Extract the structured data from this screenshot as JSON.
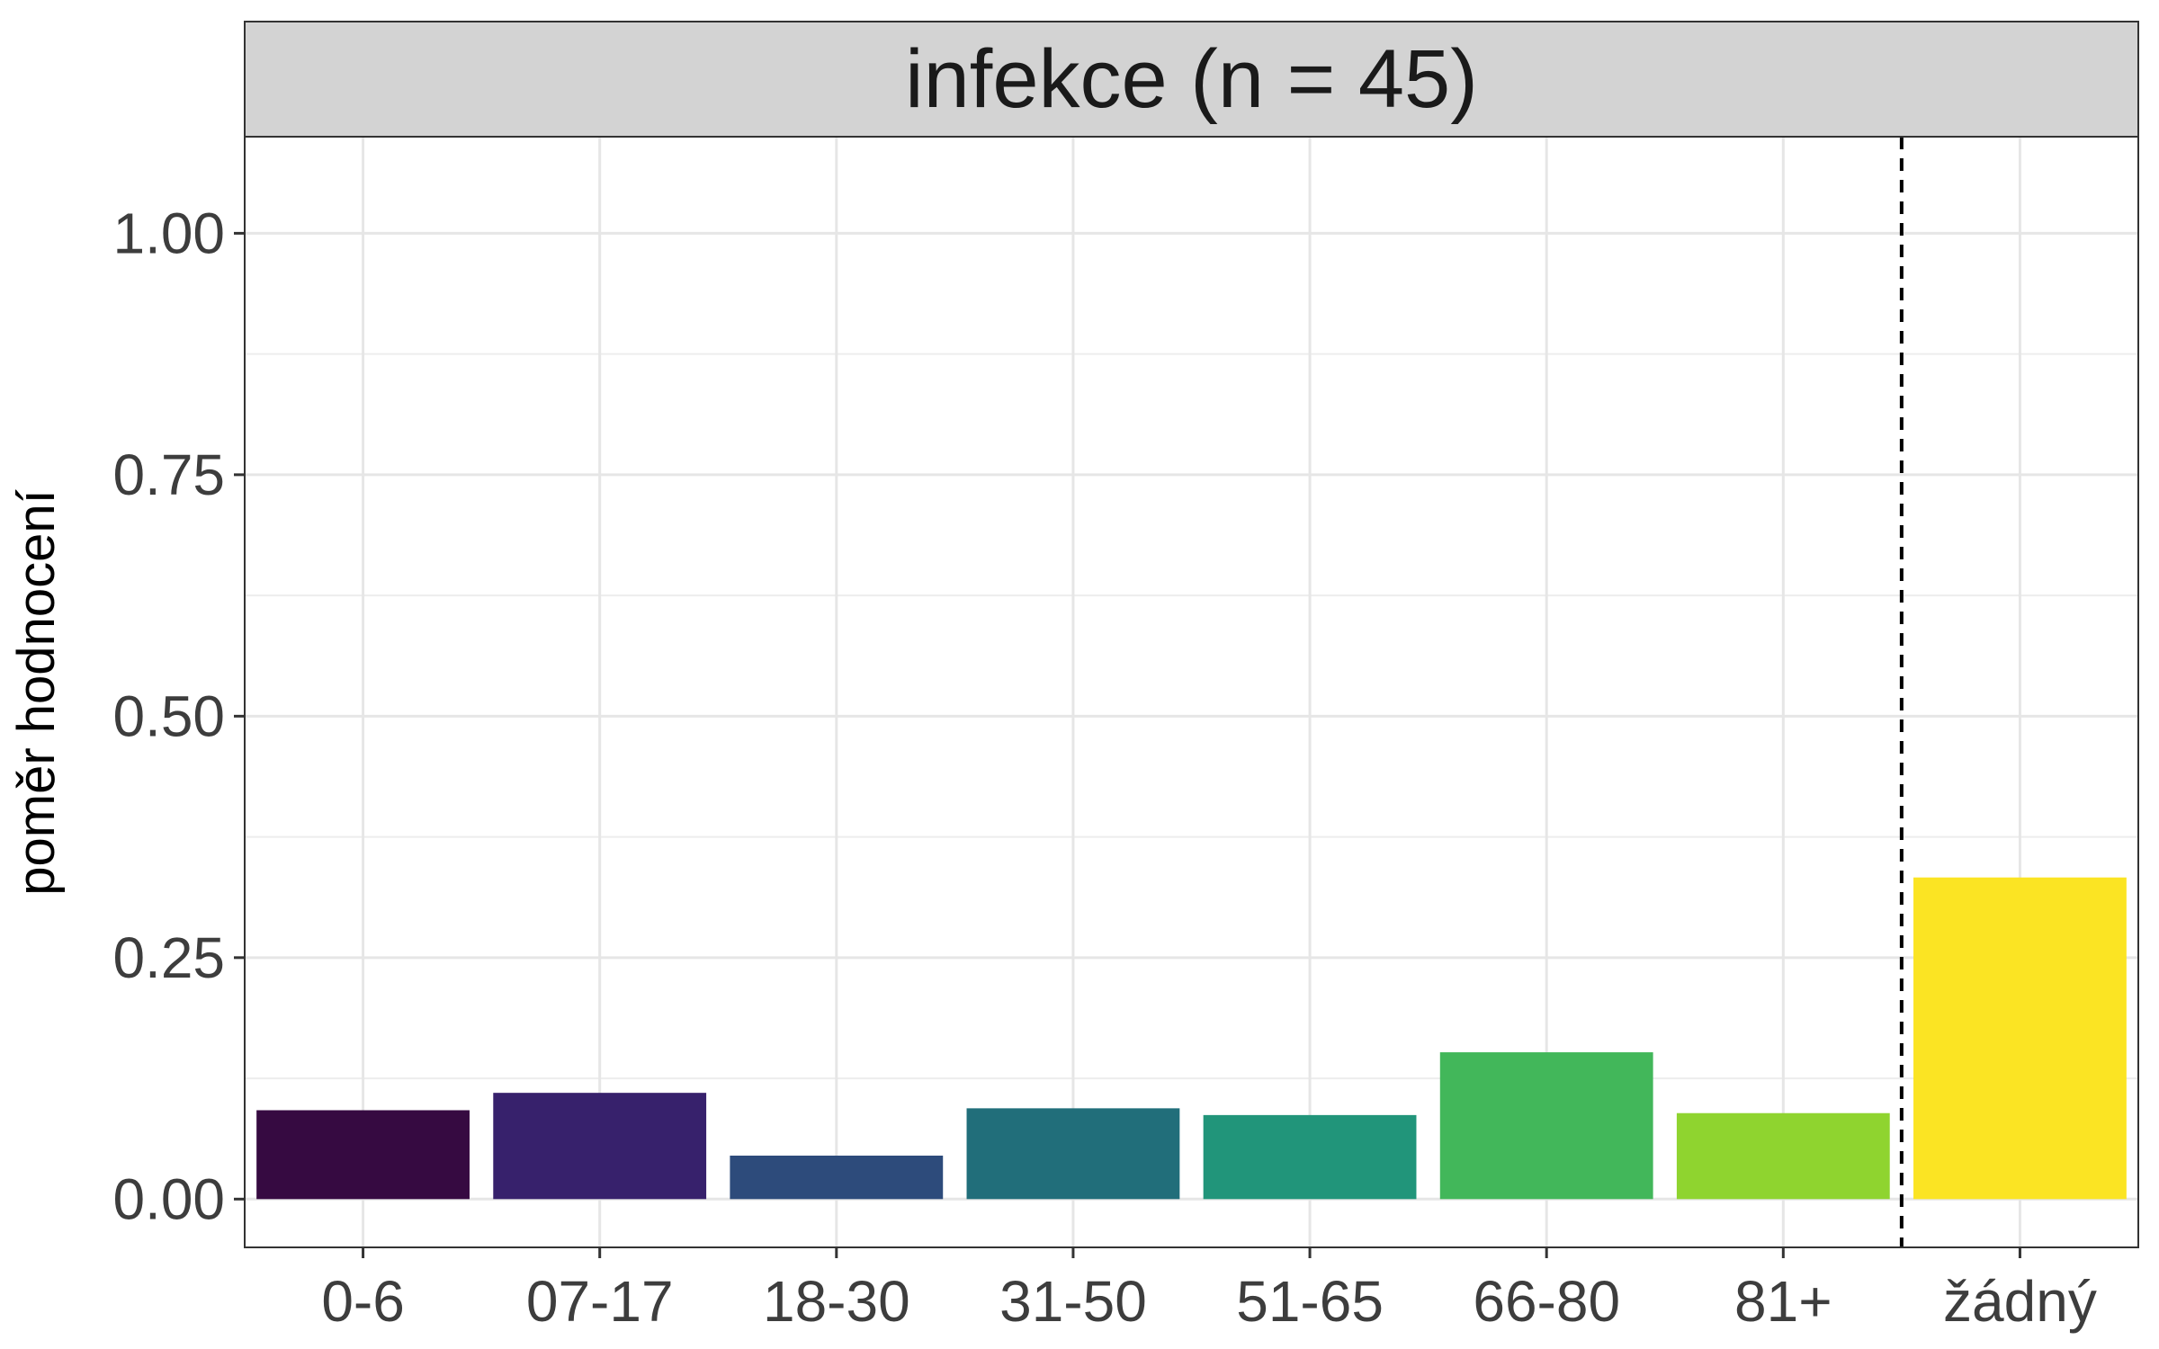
{
  "chart_data": {
    "type": "bar",
    "title": "infekce (n = 45)",
    "xlabel": "",
    "ylabel": "poměr hodnocení",
    "categories": [
      "0-6",
      "07-17",
      "18-30",
      "31-50",
      "51-65",
      "66-80",
      "81+",
      "žádný"
    ],
    "values": [
      0.092,
      0.11,
      0.045,
      0.094,
      0.087,
      0.152,
      0.089,
      0.333
    ],
    "colors": [
      "#360a41",
      "#37216c",
      "#2d4b7b",
      "#216e7a",
      "#21957a",
      "#42b75a",
      "#8fd42f",
      "#fbe423"
    ],
    "ylim": [
      -0.05,
      1.1
    ],
    "yticks": [
      "0.00",
      "0.25",
      "0.50",
      "0.75",
      "1.00"
    ],
    "ytick_values": [
      0,
      0.25,
      0.5,
      0.75,
      1.0
    ],
    "reference_line": {
      "between": [
        "81+",
        "žádný"
      ],
      "style": "dashed"
    },
    "grid": true,
    "legend": "none"
  }
}
